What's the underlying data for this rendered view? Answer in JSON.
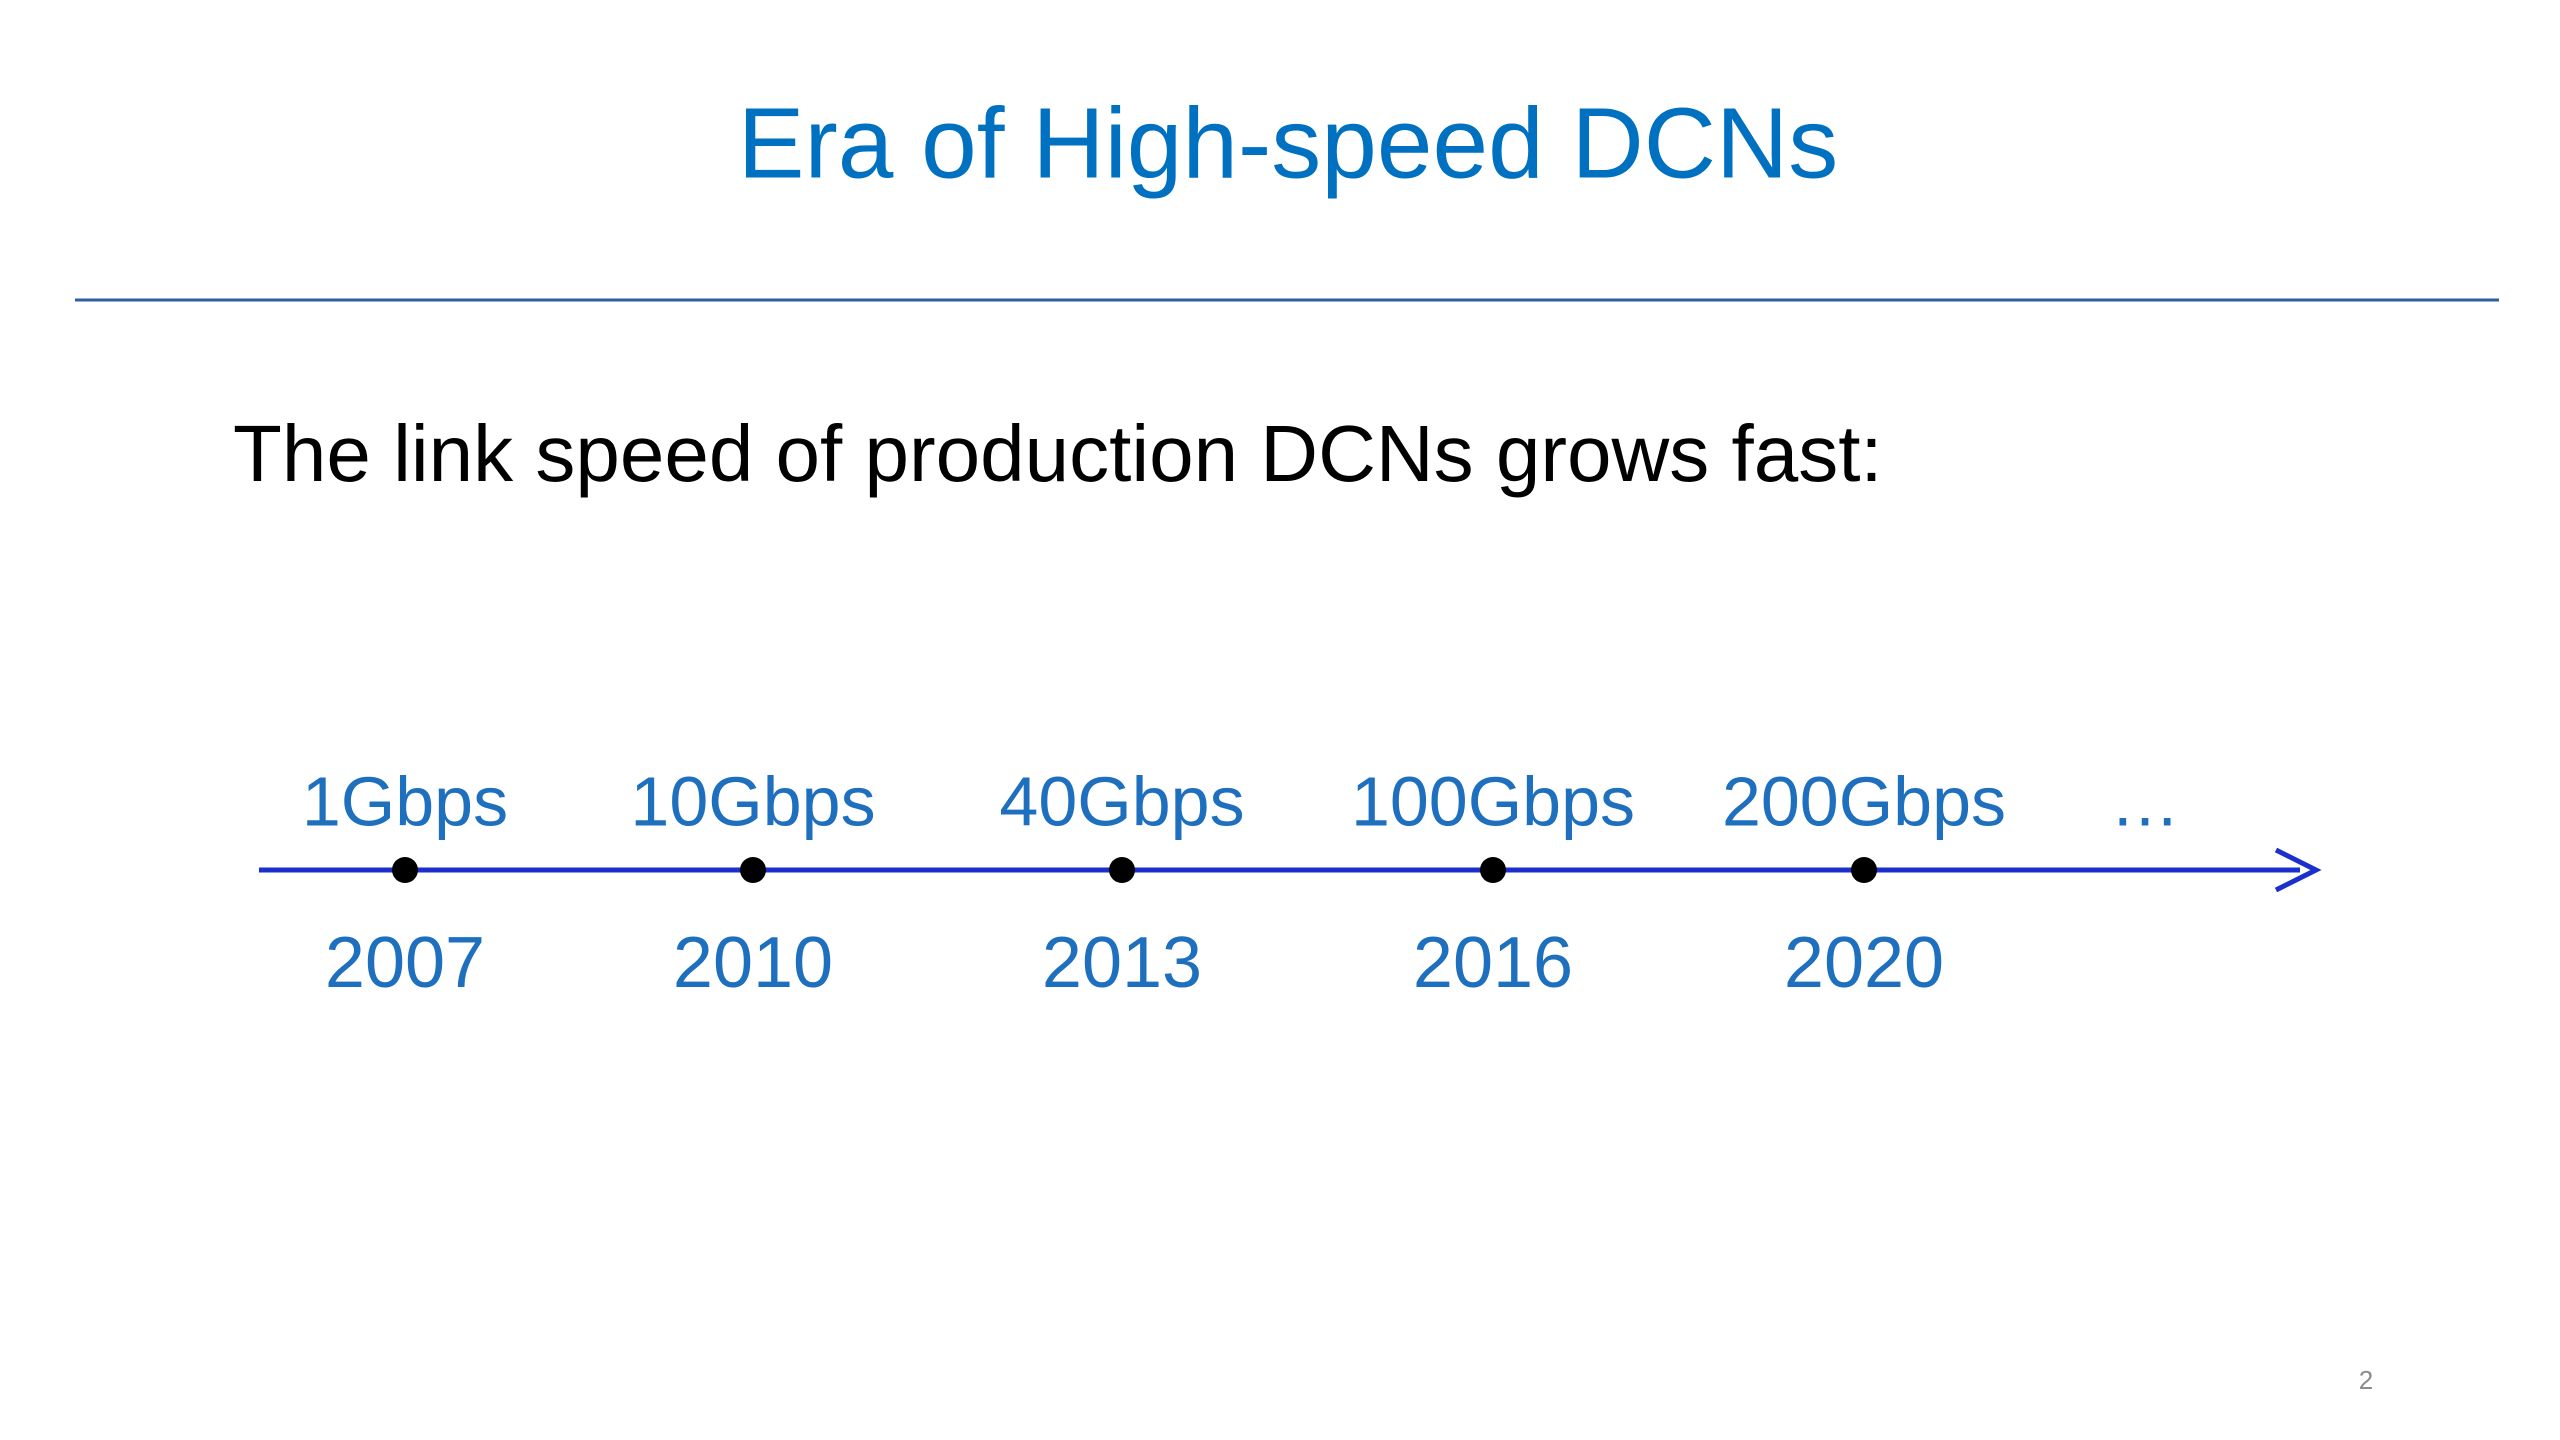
{
  "header": {
    "title": "Era of High-speed DCNs"
  },
  "body": {
    "text": "The link speed of production DCNs grows fast:"
  },
  "timeline": {
    "items": [
      {
        "speed": "1Gbps",
        "year": "2007"
      },
      {
        "speed": "10Gbps",
        "year": "2010"
      },
      {
        "speed": "40Gbps",
        "year": "2013"
      },
      {
        "speed": "100Gbps",
        "year": "2016"
      },
      {
        "speed": "200Gbps",
        "year": "2020"
      }
    ],
    "more": "…"
  },
  "footer": {
    "page_number": "2"
  }
}
